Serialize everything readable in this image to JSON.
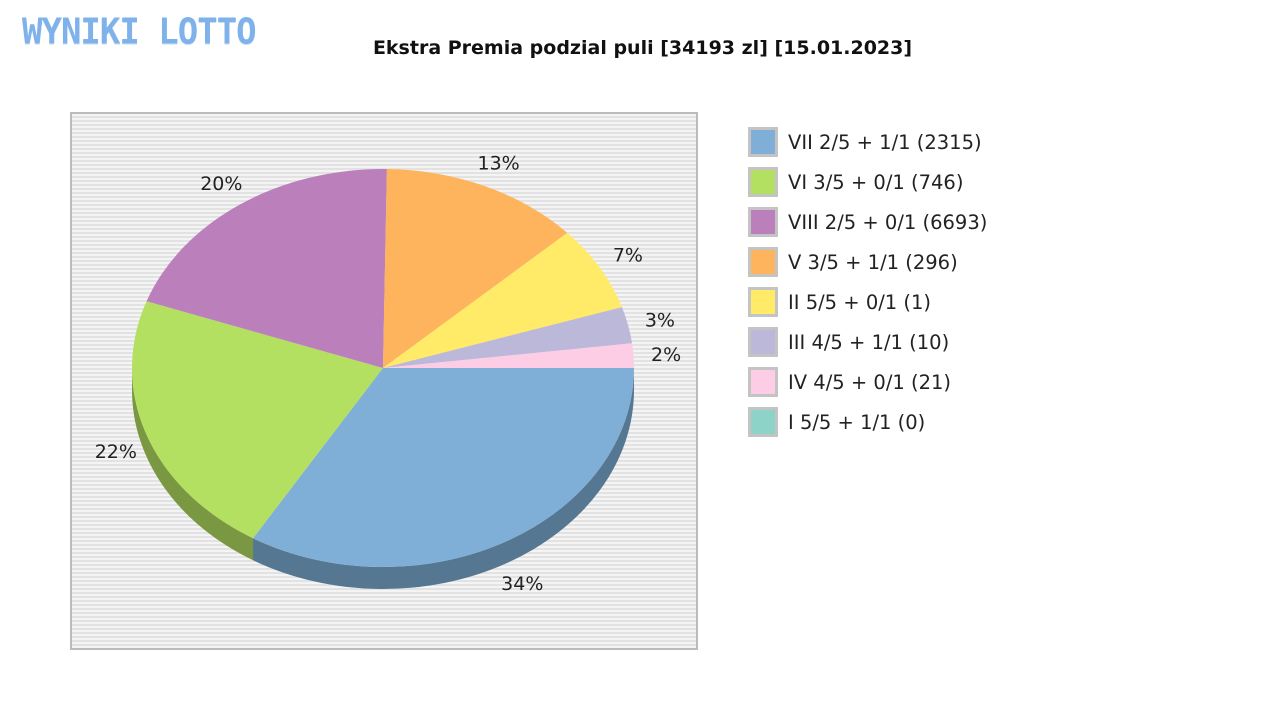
{
  "logo": "WYNIKI LOTTO",
  "chart_data": {
    "type": "pie",
    "title": "Ekstra Premia podzial puli [34193 zl] [15.01.2023]",
    "slices": [
      {
        "label": "VII 2/5 + 1/1 (2315)",
        "percent": 34,
        "percent_label": "34%",
        "color": "#7fafd6"
      },
      {
        "label": "VI 3/5 + 0/1 (746)",
        "percent": 22,
        "percent_label": "22%",
        "color": "#b3e061"
      },
      {
        "label": "VIII 2/5 + 0/1 (6693)",
        "percent": 20,
        "percent_label": "20%",
        "color": "#bb80bc"
      },
      {
        "label": "V 3/5 + 1/1 (296)",
        "percent": 13,
        "percent_label": "13%",
        "color": "#fdb45c"
      },
      {
        "label": "II 5/5 + 0/1 (1)",
        "percent": 7,
        "percent_label": "7%",
        "color": "#ffeb67"
      },
      {
        "label": "III 4/5 + 1/1 (10)",
        "percent": 3,
        "percent_label": "3%",
        "color": "#bcb8da"
      },
      {
        "label": "IV 4/5 + 0/1 (21)",
        "percent": 2,
        "percent_label": "2%",
        "color": "#fccde5"
      },
      {
        "label": "I 5/5 + 1/1 (0)",
        "percent": 0,
        "percent_label": "",
        "color": "#8dd3c7"
      }
    ],
    "legend": "right"
  }
}
